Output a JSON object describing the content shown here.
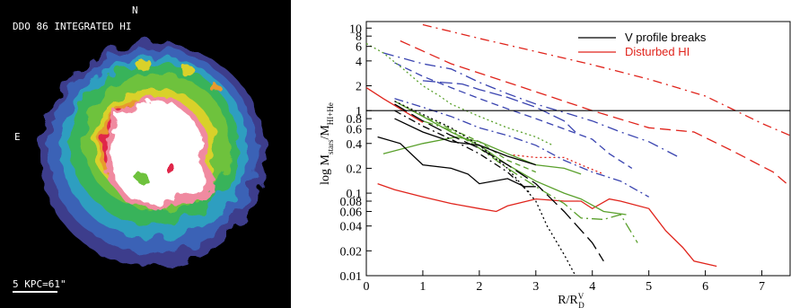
{
  "hi_map": {
    "title": "DDO 86 INTEGRATED HI",
    "north_label": "N",
    "east_label": "E",
    "scale_label": "5 KPC=61\""
  },
  "chart_data": {
    "type": "line",
    "xlabel": "R/R",
    "xlabel_sup": "V",
    "xlabel_sub": "D",
    "ylabel": "log M",
    "ylabel_sub": "stars",
    "ylabel_mid": "/M",
    "ylabel_sub2": "HI+He",
    "xlim": [
      0,
      7.5
    ],
    "ylim": [
      0.01,
      12
    ],
    "yscale": "log",
    "x_ticks": [
      "0",
      "1",
      "2",
      "3",
      "4",
      "5",
      "6",
      "7"
    ],
    "y_ticks": [
      "10",
      "8",
      "6",
      "4",
      "2",
      "1",
      "0.8",
      "0.6",
      "0.4",
      "0.2",
      "0.1",
      "0.08",
      "0.06",
      "0.04",
      "0.02",
      "0.01"
    ],
    "legend": {
      "position": "top-right",
      "entries": [
        {
          "label": "V profile breaks",
          "color": "#000000"
        },
        {
          "label": "Disturbed HI",
          "color": "#e0241c"
        }
      ]
    },
    "reference_line": {
      "y": 1
    },
    "series": [
      {
        "color": "#e0241c",
        "dash": "10,5,2,5",
        "x": [
          1.0,
          2.0,
          3.0,
          4.0,
          5.0,
          6.0,
          7.0,
          7.5
        ],
        "y": [
          11,
          7.5,
          5.2,
          3.6,
          2.4,
          1.5,
          0.7,
          0.5
        ]
      },
      {
        "color": "#e0241c",
        "dash": "12,6",
        "x": [
          0.6,
          1.5,
          2.5,
          3.5,
          4.0,
          5.0,
          5.8,
          6.5,
          7.2,
          7.5
        ],
        "y": [
          7.0,
          3.7,
          2.2,
          1.3,
          1.0,
          0.62,
          0.55,
          0.32,
          0.18,
          0.12
        ]
      },
      {
        "color": "#e0241c",
        "dash": "",
        "x": [
          0.2,
          0.5,
          1.0,
          1.5,
          2.0,
          2.3,
          2.5,
          3.0,
          3.5,
          3.8,
          4.0,
          4.3,
          4.5,
          5.0,
          5.3,
          5.6,
          5.8,
          6.2
        ],
        "y": [
          0.13,
          0.11,
          0.09,
          0.075,
          0.065,
          0.06,
          0.07,
          0.085,
          0.08,
          0.08,
          0.065,
          0.085,
          0.08,
          0.065,
          0.035,
          0.022,
          0.015,
          0.013
        ]
      },
      {
        "color": "#e0241c",
        "dash": "",
        "x": [
          0.0,
          0.3,
          0.6,
          1.0
        ],
        "y": [
          1.9,
          1.4,
          1.05,
          0.72
        ]
      },
      {
        "color": "#e0241c",
        "dash": "2,3",
        "x": [
          2.6,
          3.0,
          3.5,
          3.8,
          4.2
        ],
        "y": [
          0.29,
          0.27,
          0.27,
          0.22,
          0.17
        ]
      },
      {
        "color": "#3a44b0",
        "dash": "12,5,2,5",
        "x": [
          0.3,
          1.0,
          1.5,
          2.0,
          2.5,
          3.0,
          3.5,
          4.0,
          4.5,
          5.0,
          5.5
        ],
        "y": [
          5.0,
          3.7,
          3.2,
          2.2,
          1.6,
          1.2,
          0.95,
          0.75,
          0.55,
          0.42,
          0.28
        ]
      },
      {
        "color": "#3a44b0",
        "dash": "8,5",
        "x": [
          0.5,
          1.0,
          1.5,
          2.0,
          2.5,
          3.0,
          3.5,
          4.0,
          4.3,
          4.7
        ],
        "y": [
          3.8,
          2.6,
          1.9,
          1.4,
          1.05,
          0.8,
          0.6,
          0.45,
          0.3,
          0.2
        ]
      },
      {
        "color": "#3a44b0",
        "dash": "14,5",
        "x": [
          1.0,
          1.7,
          2.0,
          2.5,
          3.0,
          3.5,
          3.7
        ],
        "y": [
          2.3,
          2.1,
          1.8,
          1.45,
          1.1,
          0.75,
          0.55
        ]
      },
      {
        "color": "#3a44b0",
        "dash": "10,4,2,4",
        "x": [
          0.5,
          1.0,
          1.5,
          2.0,
          2.5,
          3.0,
          3.5,
          4.0,
          4.5,
          5.0
        ],
        "y": [
          1.4,
          1.1,
          0.85,
          0.62,
          0.5,
          0.38,
          0.25,
          0.18,
          0.14,
          0.09
        ]
      },
      {
        "color": "#5aa02c",
        "dash": "2,3",
        "x": [
          0.0,
          0.3,
          0.7,
          1.0,
          1.3,
          1.5,
          2.0,
          2.5,
          3.0,
          3.3
        ],
        "y": [
          6.5,
          5.0,
          3.0,
          2.0,
          1.5,
          1.2,
          0.85,
          0.62,
          0.48,
          0.38
        ]
      },
      {
        "color": "#5aa02c",
        "dash": "",
        "x": [
          0.3,
          1.0,
          1.6,
          2.0,
          2.5,
          3.0,
          3.5,
          3.8
        ],
        "y": [
          0.3,
          0.4,
          0.48,
          0.42,
          0.3,
          0.22,
          0.2,
          0.17
        ]
      },
      {
        "color": "#5aa02c",
        "dash": "",
        "x": [
          0.5,
          1.0,
          1.5,
          2.0,
          2.5,
          3.0,
          3.5,
          3.8,
          4.2,
          4.6
        ],
        "y": [
          1.3,
          0.85,
          0.55,
          0.38,
          0.22,
          0.14,
          0.1,
          0.085,
          0.06,
          0.055
        ]
      },
      {
        "color": "#5aa02c",
        "dash": "12,4,2,4",
        "x": [
          1.0,
          1.5,
          2.0,
          2.5,
          3.0,
          3.5,
          3.8,
          4.2,
          4.5,
          4.8
        ],
        "y": [
          0.75,
          0.58,
          0.35,
          0.2,
          0.12,
          0.075,
          0.05,
          0.048,
          0.055,
          0.025
        ]
      },
      {
        "color": "#5aa02c",
        "dash": "6,4",
        "x": [
          0.8,
          1.5,
          2.0,
          2.5,
          3.0
        ],
        "y": [
          1.0,
          0.6,
          0.42,
          0.25,
          0.18
        ]
      },
      {
        "color": "#000000",
        "dash": "",
        "x": [
          0.2,
          0.6,
          1.0,
          1.5,
          1.8,
          2.0,
          2.5,
          2.8,
          3.0
        ],
        "y": [
          0.48,
          0.4,
          0.22,
          0.2,
          0.17,
          0.13,
          0.15,
          0.12,
          0.12
        ]
      },
      {
        "color": "#000000",
        "dash": "",
        "x": [
          0.5,
          1.0,
          1.5,
          2.0,
          2.5,
          3.0
        ],
        "y": [
          0.8,
          0.55,
          0.42,
          0.38,
          0.28,
          0.22
        ]
      },
      {
        "color": "#000000",
        "dash": "16,6",
        "x": [
          0.5,
          1.0,
          1.5,
          2.0,
          2.5,
          3.0,
          3.5,
          4.0,
          4.2
        ],
        "y": [
          1.2,
          0.75,
          0.5,
          0.35,
          0.22,
          0.13,
          0.06,
          0.025,
          0.015
        ]
      },
      {
        "color": "#000000",
        "dash": "2,3",
        "x": [
          0.5,
          1.0,
          1.5,
          2.0,
          2.5,
          3.0,
          3.2,
          3.5,
          3.7
        ],
        "y": [
          1.3,
          0.9,
          0.62,
          0.38,
          0.2,
          0.08,
          0.04,
          0.018,
          0.01
        ]
      },
      {
        "color": "#000000",
        "dash": "8,4,2,4",
        "x": [
          0.5,
          1.0,
          1.5,
          2.0,
          2.5,
          2.9
        ],
        "y": [
          1.0,
          0.65,
          0.45,
          0.3,
          0.18,
          0.1
        ]
      }
    ]
  }
}
